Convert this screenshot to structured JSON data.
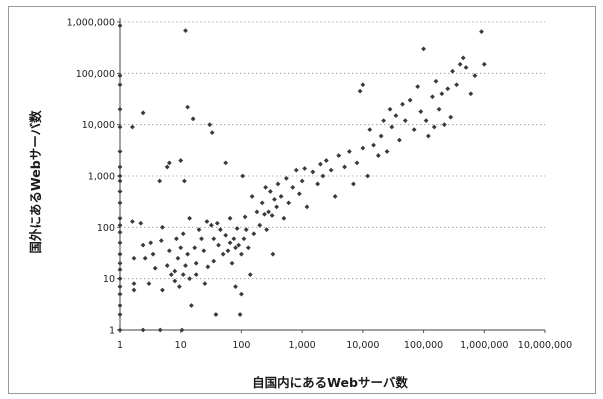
{
  "chart_data": {
    "type": "scatter",
    "title": "",
    "xlabel": "自国内にあるWebサーバ数",
    "ylabel": "国外にあるWebサーバ数",
    "x_scale": "log",
    "y_scale": "log",
    "xlim": [
      1,
      10000000
    ],
    "ylim": [
      1,
      1000000
    ],
    "x_ticks": [
      "1",
      "10",
      "100",
      "1,000",
      "10,000",
      "100,000",
      "1,000,000",
      "10,000,000"
    ],
    "y_ticks": [
      "1",
      "10",
      "100",
      "1,000",
      "10,000",
      "100,000",
      "1,000,000"
    ],
    "grid": "horizontal-dotted",
    "legend": "none",
    "marker_color": "#3a3a3a",
    "points": [
      {
        "x": 1,
        "y": 850000
      },
      {
        "x": 1,
        "y": 90000
      },
      {
        "x": 1,
        "y": 60000
      },
      {
        "x": 1,
        "y": 20000
      },
      {
        "x": 1,
        "y": 9000
      },
      {
        "x": 1,
        "y": 3000
      },
      {
        "x": 1,
        "y": 1500
      },
      {
        "x": 1,
        "y": 1000
      },
      {
        "x": 1,
        "y": 800
      },
      {
        "x": 1,
        "y": 500
      },
      {
        "x": 1,
        "y": 300
      },
      {
        "x": 1,
        "y": 150
      },
      {
        "x": 1,
        "y": 110
      },
      {
        "x": 1,
        "y": 80
      },
      {
        "x": 1,
        "y": 50
      },
      {
        "x": 1,
        "y": 30
      },
      {
        "x": 1,
        "y": 20
      },
      {
        "x": 1,
        "y": 15
      },
      {
        "x": 1,
        "y": 10
      },
      {
        "x": 1,
        "y": 7
      },
      {
        "x": 1,
        "y": 5
      },
      {
        "x": 1,
        "y": 3
      },
      {
        "x": 1,
        "y": 2
      },
      {
        "x": 1,
        "y": 1
      },
      {
        "x": 1.6,
        "y": 9000
      },
      {
        "x": 1.6,
        "y": 130
      },
      {
        "x": 1.7,
        "y": 25
      },
      {
        "x": 1.7,
        "y": 8
      },
      {
        "x": 1.7,
        "y": 6
      },
      {
        "x": 2.4,
        "y": 17000
      },
      {
        "x": 2.2,
        "y": 120
      },
      {
        "x": 2.4,
        "y": 45
      },
      {
        "x": 2.6,
        "y": 25
      },
      {
        "x": 2.4,
        "y": 1
      },
      {
        "x": 3,
        "y": 8
      },
      {
        "x": 3.2,
        "y": 50
      },
      {
        "x": 3.5,
        "y": 30
      },
      {
        "x": 3.8,
        "y": 16
      },
      {
        "x": 4.5,
        "y": 800
      },
      {
        "x": 4.8,
        "y": 55
      },
      {
        "x": 5,
        "y": 100
      },
      {
        "x": 5,
        "y": 6
      },
      {
        "x": 4.6,
        "y": 1
      },
      {
        "x": 6,
        "y": 1500
      },
      {
        "x": 6.5,
        "y": 1800
      },
      {
        "x": 6,
        "y": 18
      },
      {
        "x": 6.5,
        "y": 35
      },
      {
        "x": 7,
        "y": 12
      },
      {
        "x": 8,
        "y": 14
      },
      {
        "x": 8,
        "y": 9
      },
      {
        "x": 8.5,
        "y": 60
      },
      {
        "x": 9,
        "y": 25
      },
      {
        "x": 9.5,
        "y": 7
      },
      {
        "x": 10,
        "y": 2000
      },
      {
        "x": 10,
        "y": 40
      },
      {
        "x": 10.5,
        "y": 1
      },
      {
        "x": 11,
        "y": 75
      },
      {
        "x": 11.5,
        "y": 800
      },
      {
        "x": 11,
        "y": 12
      },
      {
        "x": 12,
        "y": 680000
      },
      {
        "x": 12,
        "y": 18
      },
      {
        "x": 13,
        "y": 22000
      },
      {
        "x": 13,
        "y": 30
      },
      {
        "x": 14,
        "y": 150
      },
      {
        "x": 14,
        "y": 10
      },
      {
        "x": 15,
        "y": 3
      },
      {
        "x": 16,
        "y": 13000
      },
      {
        "x": 17,
        "y": 40
      },
      {
        "x": 18,
        "y": 20
      },
      {
        "x": 18,
        "y": 12
      },
      {
        "x": 20,
        "y": 90
      },
      {
        "x": 22,
        "y": 60
      },
      {
        "x": 24,
        "y": 35
      },
      {
        "x": 25,
        "y": 8
      },
      {
        "x": 27,
        "y": 130
      },
      {
        "x": 28,
        "y": 17
      },
      {
        "x": 30,
        "y": 10000
      },
      {
        "x": 33,
        "y": 7000
      },
      {
        "x": 32,
        "y": 110
      },
      {
        "x": 35,
        "y": 60
      },
      {
        "x": 35,
        "y": 22
      },
      {
        "x": 38,
        "y": 2
      },
      {
        "x": 40,
        "y": 120
      },
      {
        "x": 42,
        "y": 45
      },
      {
        "x": 45,
        "y": 90
      },
      {
        "x": 50,
        "y": 30
      },
      {
        "x": 55,
        "y": 1800
      },
      {
        "x": 55,
        "y": 70
      },
      {
        "x": 60,
        "y": 35
      },
      {
        "x": 65,
        "y": 150
      },
      {
        "x": 65,
        "y": 50
      },
      {
        "x": 70,
        "y": 20
      },
      {
        "x": 75,
        "y": 60
      },
      {
        "x": 80,
        "y": 40
      },
      {
        "x": 80,
        "y": 7
      },
      {
        "x": 85,
        "y": 95
      },
      {
        "x": 90,
        "y": 45
      },
      {
        "x": 95,
        "y": 2
      },
      {
        "x": 100,
        "y": 30
      },
      {
        "x": 100,
        "y": 5
      },
      {
        "x": 105,
        "y": 1000
      },
      {
        "x": 110,
        "y": 60
      },
      {
        "x": 115,
        "y": 160
      },
      {
        "x": 120,
        "y": 90
      },
      {
        "x": 130,
        "y": 40
      },
      {
        "x": 140,
        "y": 12
      },
      {
        "x": 150,
        "y": 400
      },
      {
        "x": 160,
        "y": 75
      },
      {
        "x": 180,
        "y": 200
      },
      {
        "x": 200,
        "y": 110
      },
      {
        "x": 220,
        "y": 300
      },
      {
        "x": 240,
        "y": 180
      },
      {
        "x": 250,
        "y": 600
      },
      {
        "x": 260,
        "y": 90
      },
      {
        "x": 280,
        "y": 200
      },
      {
        "x": 300,
        "y": 500
      },
      {
        "x": 320,
        "y": 170
      },
      {
        "x": 330,
        "y": 30
      },
      {
        "x": 350,
        "y": 350
      },
      {
        "x": 380,
        "y": 250
      },
      {
        "x": 400,
        "y": 700
      },
      {
        "x": 450,
        "y": 400
      },
      {
        "x": 500,
        "y": 150
      },
      {
        "x": 550,
        "y": 900
      },
      {
        "x": 600,
        "y": 300
      },
      {
        "x": 700,
        "y": 600
      },
      {
        "x": 800,
        "y": 1300
      },
      {
        "x": 900,
        "y": 450
      },
      {
        "x": 1000,
        "y": 800
      },
      {
        "x": 1100,
        "y": 1400
      },
      {
        "x": 1200,
        "y": 250
      },
      {
        "x": 1500,
        "y": 1200
      },
      {
        "x": 1800,
        "y": 700
      },
      {
        "x": 2000,
        "y": 1700
      },
      {
        "x": 2200,
        "y": 1000
      },
      {
        "x": 2500,
        "y": 2000
      },
      {
        "x": 3000,
        "y": 1300
      },
      {
        "x": 3500,
        "y": 400
      },
      {
        "x": 4000,
        "y": 2500
      },
      {
        "x": 5000,
        "y": 1500
      },
      {
        "x": 6000,
        "y": 3000
      },
      {
        "x": 7000,
        "y": 700
      },
      {
        "x": 8000,
        "y": 1800
      },
      {
        "x": 9000,
        "y": 45000
      },
      {
        "x": 10000,
        "y": 60000
      },
      {
        "x": 10000,
        "y": 3500
      },
      {
        "x": 12000,
        "y": 1000
      },
      {
        "x": 13000,
        "y": 8000
      },
      {
        "x": 15000,
        "y": 4000
      },
      {
        "x": 18000,
        "y": 2500
      },
      {
        "x": 20000,
        "y": 6000
      },
      {
        "x": 22000,
        "y": 12000
      },
      {
        "x": 25000,
        "y": 3000
      },
      {
        "x": 28000,
        "y": 20000
      },
      {
        "x": 30000,
        "y": 9000
      },
      {
        "x": 35000,
        "y": 15000
      },
      {
        "x": 40000,
        "y": 5000
      },
      {
        "x": 45000,
        "y": 25000
      },
      {
        "x": 50000,
        "y": 12000
      },
      {
        "x": 60000,
        "y": 30000
      },
      {
        "x": 70000,
        "y": 8000
      },
      {
        "x": 80000,
        "y": 55000
      },
      {
        "x": 90000,
        "y": 18000
      },
      {
        "x": 100000,
        "y": 300000
      },
      {
        "x": 110000,
        "y": 12000
      },
      {
        "x": 120000,
        "y": 6000
      },
      {
        "x": 140000,
        "y": 35000
      },
      {
        "x": 150000,
        "y": 9000
      },
      {
        "x": 160000,
        "y": 70000
      },
      {
        "x": 180000,
        "y": 20000
      },
      {
        "x": 200000,
        "y": 40000
      },
      {
        "x": 220000,
        "y": 10000
      },
      {
        "x": 250000,
        "y": 50000
      },
      {
        "x": 280000,
        "y": 14000
      },
      {
        "x": 300000,
        "y": 110000
      },
      {
        "x": 350000,
        "y": 60000
      },
      {
        "x": 400000,
        "y": 150000
      },
      {
        "x": 450000,
        "y": 200000
      },
      {
        "x": 500000,
        "y": 130000
      },
      {
        "x": 600000,
        "y": 40000
      },
      {
        "x": 700000,
        "y": 90000
      },
      {
        "x": 900000,
        "y": 650000
      },
      {
        "x": 1000000,
        "y": 150000
      }
    ]
  }
}
